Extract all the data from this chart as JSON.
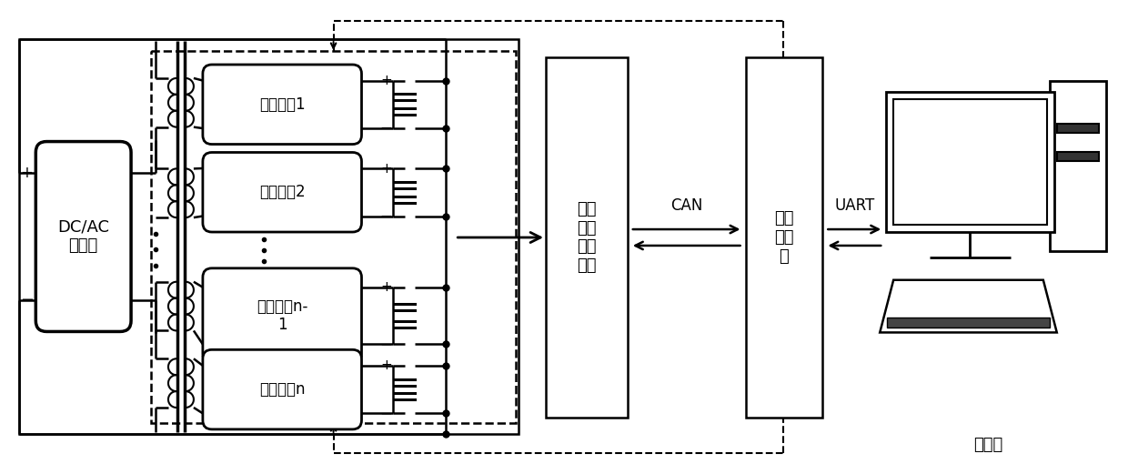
{
  "bg_color": "#ffffff",
  "line_color": "#000000",
  "fig_width": 12.4,
  "fig_height": 5.21,
  "dpi": 100,
  "dcac_label": "DC/AC\n变换器",
  "voltage_label": "电压\n电流\n采集\n单元",
  "controller_label": "控制\n器单\n元",
  "can_text": "CAN",
  "uart_text": "UART",
  "upper_text": "上位机",
  "rect_labels": [
    "同步整流1",
    "同步整流2",
    "同步整流n-\n1",
    "同步整流n"
  ]
}
